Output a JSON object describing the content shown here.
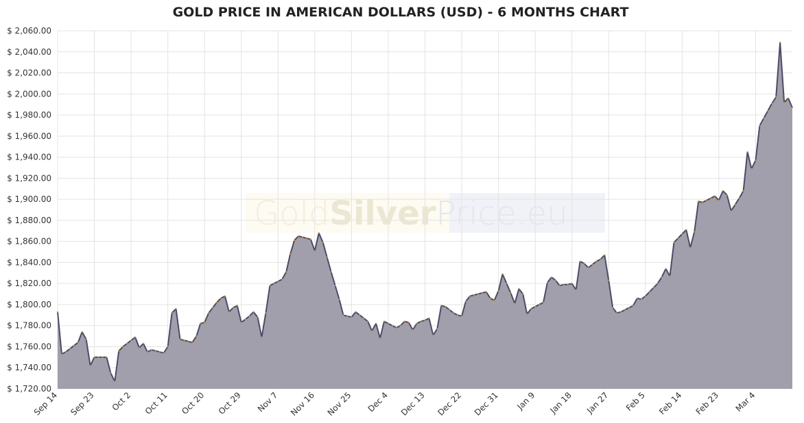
{
  "chart_data": {
    "type": "area",
    "title": "GOLD PRICE IN AMERICAN DOLLARS (USD) - 6 MONTHS CHART",
    "watermark": [
      "Gold",
      "Silver",
      "Price.eu"
    ],
    "categories": [
      "Sep 14",
      null,
      null,
      null,
      null,
      null,
      null,
      null,
      null,
      "Sep 23",
      null,
      null,
      null,
      null,
      null,
      null,
      null,
      null,
      "Oct 2",
      null,
      null,
      null,
      null,
      null,
      null,
      null,
      null,
      "Oct 11",
      null,
      null,
      null,
      null,
      null,
      null,
      null,
      null,
      "Oct 20",
      null,
      null,
      null,
      null,
      null,
      null,
      null,
      null,
      "Oct 29",
      null,
      null,
      null,
      null,
      null,
      null,
      null,
      null,
      "Nov 7",
      null,
      null,
      null,
      null,
      null,
      null,
      null,
      null,
      "Nov 16",
      null,
      null,
      null,
      null,
      null,
      null,
      null,
      null,
      "Nov 25",
      null,
      null,
      null,
      null,
      null,
      null,
      null,
      null,
      "Dec 4",
      null,
      null,
      null,
      null,
      null,
      null,
      null,
      null,
      "Dec 13",
      null,
      null,
      null,
      null,
      null,
      null,
      null,
      null,
      "Dec 22",
      null,
      null,
      null,
      null,
      null,
      null,
      null,
      null,
      "Dec 31",
      null,
      null,
      null,
      null,
      null,
      null,
      null,
      null,
      "Jan 9",
      null,
      null,
      null,
      null,
      null,
      null,
      null,
      null,
      "Jan 18",
      null,
      null,
      null,
      null,
      null,
      null,
      null,
      null,
      "Jan 27",
      null,
      null,
      null,
      null,
      null,
      null,
      null,
      null,
      "Feb 5",
      null,
      null,
      null,
      null,
      null,
      null,
      null,
      null,
      "Feb 14",
      null,
      null,
      null,
      null,
      null,
      null,
      null,
      null,
      "Feb 23",
      null,
      null,
      null,
      null,
      null,
      null,
      null,
      null,
      "Mar 4",
      null,
      null,
      null,
      null,
      null,
      null,
      null,
      null,
      null
    ],
    "values": [
      1793,
      1753,
      1755,
      1758,
      1761,
      1764,
      1774,
      1767,
      1742,
      1750,
      1750,
      1750,
      1750,
      1735,
      1727,
      1756,
      1760,
      1763,
      1766,
      1769,
      1759,
      1763,
      1755,
      1757,
      1756,
      1755,
      1754,
      1760,
      1792,
      1796,
      1767,
      1766,
      1765,
      1764,
      1770,
      1782,
      1783,
      1792,
      1797,
      1802,
      1806,
      1808,
      1793,
      1797,
      1799,
      1783,
      1786,
      1789,
      1793,
      1788,
      1769,
      1792,
      1818,
      1820,
      1822,
      1824,
      1831,
      1848,
      1861,
      1865,
      1864,
      1863,
      1862,
      1851,
      1868,
      1859,
      1845,
      1831,
      1818,
      1805,
      1790,
      1789,
      1788,
      1793,
      1790,
      1787,
      1784,
      1775,
      1782,
      1768,
      1784,
      1782,
      1780,
      1778,
      1780,
      1784,
      1783,
      1776,
      1782,
      1784,
      1785,
      1787,
      1771,
      1777,
      1799,
      1798,
      1795,
      1792,
      1790,
      1789,
      1803,
      1808,
      1809,
      1810,
      1811,
      1812,
      1806,
      1804,
      1813,
      1829,
      1820,
      1811,
      1801,
      1815,
      1810,
      1791,
      1796,
      1798,
      1800,
      1802,
      1821,
      1826,
      1823,
      1818,
      1819,
      1819,
      1820,
      1814,
      1841,
      1839,
      1835,
      1838,
      1841,
      1843,
      1847,
      1823,
      1797,
      1792,
      1793,
      1795,
      1797,
      1799,
      1806,
      1805,
      1808,
      1812,
      1816,
      1820,
      1826,
      1834,
      1827,
      1859,
      1863,
      1867,
      1871,
      1854,
      1869,
      1898,
      1897,
      1899,
      1901,
      1903,
      1899,
      1908,
      1904,
      1889,
      1895,
      1901,
      1908,
      1945,
      1929,
      1937,
      1970,
      1977,
      1984,
      1991,
      1997,
      2049,
      1992,
      1996,
      1987
    ],
    "color": "#4b4b68",
    "fill": "#a09fab",
    "marker_color": "#d39a3a",
    "ylim": [
      1720,
      2060
    ],
    "yticks": [
      {
        "value": 1720,
        "label": "$ 1,720.00"
      },
      {
        "value": 1740,
        "label": "$ 1,740.00"
      },
      {
        "value": 1760,
        "label": "$ 1,760.00"
      },
      {
        "value": 1780,
        "label": "$ 1,780.00"
      },
      {
        "value": 1800,
        "label": "$ 1,800.00"
      },
      {
        "value": 1820,
        "label": "$ 1,820.00"
      },
      {
        "value": 1840,
        "label": "$ 1,840.00"
      },
      {
        "value": 1860,
        "label": "$ 1,860.00"
      },
      {
        "value": 1880,
        "label": "$ 1,880.00"
      },
      {
        "value": 1900,
        "label": "$ 1,900.00"
      },
      {
        "value": 1920,
        "label": "$ 1,920.00"
      },
      {
        "value": 1940,
        "label": "$ 1,940.00"
      },
      {
        "value": 1960,
        "label": "$ 1,960.00"
      },
      {
        "value": 1980,
        "label": "$ 1,980.00"
      },
      {
        "value": 2000,
        "label": "$ 2,000.00"
      },
      {
        "value": 2020,
        "label": "$ 2,020.00"
      },
      {
        "value": 2040,
        "label": "$ 2,040.00"
      },
      {
        "value": 2060,
        "label": "$ 2,060.00"
      }
    ],
    "grid": true
  }
}
